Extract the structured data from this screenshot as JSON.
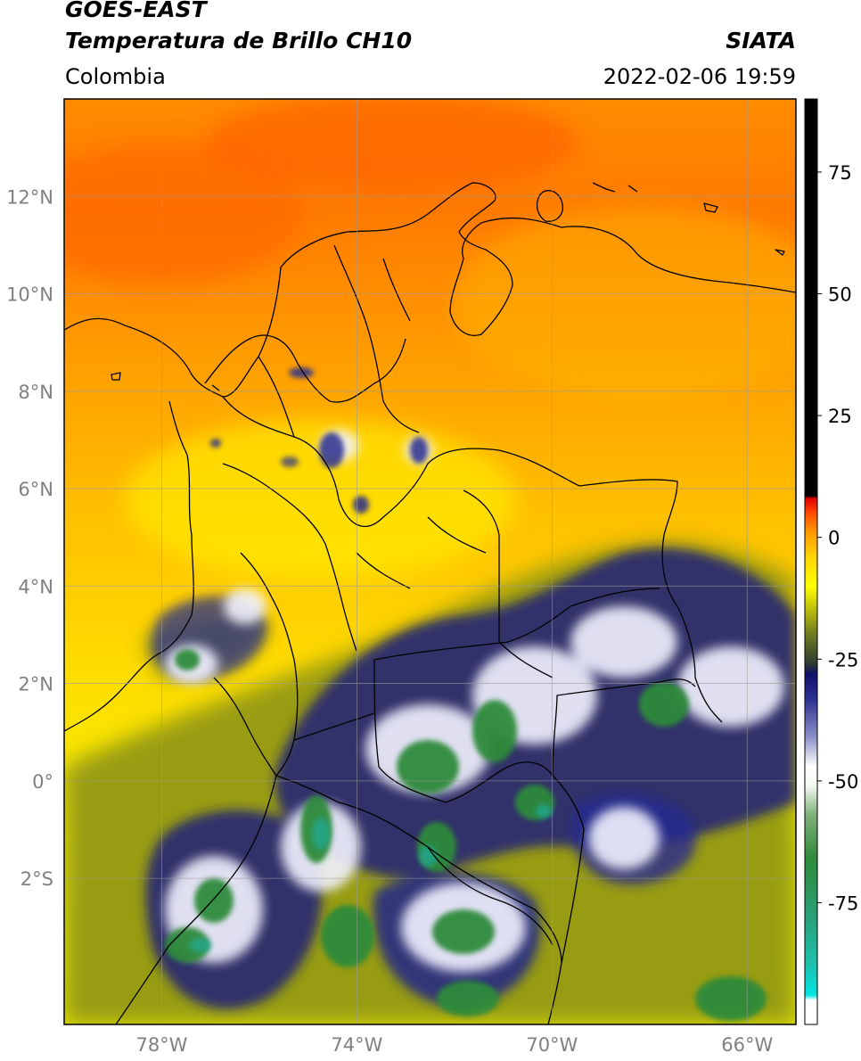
{
  "header": {
    "satellite": "GOES-EAST",
    "product": "Temperatura de Brillo CH10",
    "organization": "SIATA",
    "region": "Colombia",
    "datetime": "2022-02-06 19:59"
  },
  "map": {
    "lon_range": [
      -80.0,
      -65.0
    ],
    "lat_range": [
      -5.0,
      14.0
    ],
    "grid": true,
    "lon_ticks": [
      {
        "value": -78,
        "label": "78°W"
      },
      {
        "value": -74,
        "label": "74°W"
      },
      {
        "value": -70,
        "label": "70°W"
      },
      {
        "value": -66,
        "label": "66°W"
      }
    ],
    "lat_ticks": [
      {
        "value": 12,
        "label": "12°N"
      },
      {
        "value": 10,
        "label": "10°N"
      },
      {
        "value": 8,
        "label": "8°N"
      },
      {
        "value": 6,
        "label": "6°N"
      },
      {
        "value": 4,
        "label": "4°N"
      },
      {
        "value": 2,
        "label": "2°N"
      },
      {
        "value": 0,
        "label": "0°"
      },
      {
        "value": -2,
        "label": "2°S"
      }
    ]
  },
  "colorbar": {
    "range": [
      -100,
      90
    ],
    "ticks": [
      {
        "value": 75,
        "label": "75"
      },
      {
        "value": 50,
        "label": "50"
      },
      {
        "value": 25,
        "label": "25"
      },
      {
        "value": 0,
        "label": "0"
      },
      {
        "value": -25,
        "label": "-25"
      },
      {
        "value": -50,
        "label": "-50"
      },
      {
        "value": -75,
        "label": "-75"
      }
    ],
    "stops": [
      {
        "value": -100,
        "color": "#ffffff"
      },
      {
        "value": -95,
        "color": "#ffffff"
      },
      {
        "value": -94,
        "color": "#00e5e5"
      },
      {
        "value": -88,
        "color": "#1cc3b0"
      },
      {
        "value": -78,
        "color": "#2aa078"
      },
      {
        "value": -66,
        "color": "#2e8b3a"
      },
      {
        "value": -57,
        "color": "#7fb07a"
      },
      {
        "value": -51,
        "color": "#f4f8f2"
      },
      {
        "value": -47,
        "color": "#ffffff"
      },
      {
        "value": -41,
        "color": "#8c90c8"
      },
      {
        "value": -33,
        "color": "#2a2f8f"
      },
      {
        "value": -28,
        "color": "#10106a"
      },
      {
        "value": -26,
        "color": "#2c3a30"
      },
      {
        "value": -20,
        "color": "#6e7a20"
      },
      {
        "value": -14,
        "color": "#c8c808"
      },
      {
        "value": -10,
        "color": "#ffff00"
      },
      {
        "value": -4,
        "color": "#ffd400"
      },
      {
        "value": 1,
        "color": "#ff9a00"
      },
      {
        "value": 5,
        "color": "#ff4a00"
      },
      {
        "value": 8,
        "color": "#e00000"
      },
      {
        "value": 8.5,
        "color": "#000000"
      },
      {
        "value": 90,
        "color": "#000000"
      }
    ]
  }
}
